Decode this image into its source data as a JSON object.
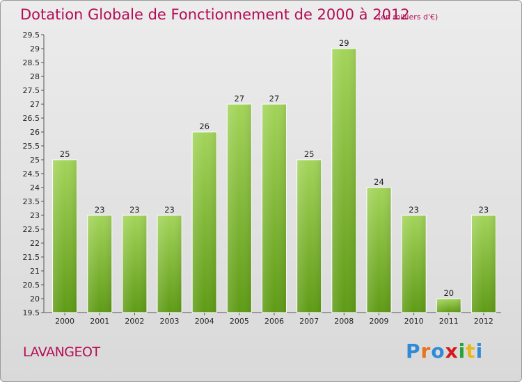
{
  "header": {
    "title": "Dotation Globale de Fonctionnement de 2000 à 2012",
    "subtitle": "(en milliers d'€)"
  },
  "footer": {
    "commune": "LAVANGEOT",
    "logo": "Proxiti"
  },
  "colors": {
    "title": "#b40c55",
    "bar_top": "#a3d45a",
    "bar_bottom": "#5f9b16"
  },
  "chart_data": {
    "type": "bar",
    "categories": [
      "2000",
      "2001",
      "2002",
      "2003",
      "2004",
      "2005",
      "2006",
      "2007",
      "2008",
      "2009",
      "2010",
      "2011",
      "2012"
    ],
    "values": [
      25,
      23,
      23,
      23,
      26,
      27,
      27,
      25,
      29,
      24,
      23,
      20,
      23
    ],
    "ylim": [
      19.5,
      29.5
    ],
    "yticks": [
      "19.5",
      "20",
      "20.5",
      "21",
      "21.5",
      "22",
      "22.5",
      "23",
      "23.5",
      "24",
      "24.5",
      "25",
      "25.5",
      "26",
      "26.5",
      "27",
      "27.5",
      "28",
      "28.5",
      "29",
      "29.5"
    ],
    "grid": false,
    "legend": "none"
  }
}
